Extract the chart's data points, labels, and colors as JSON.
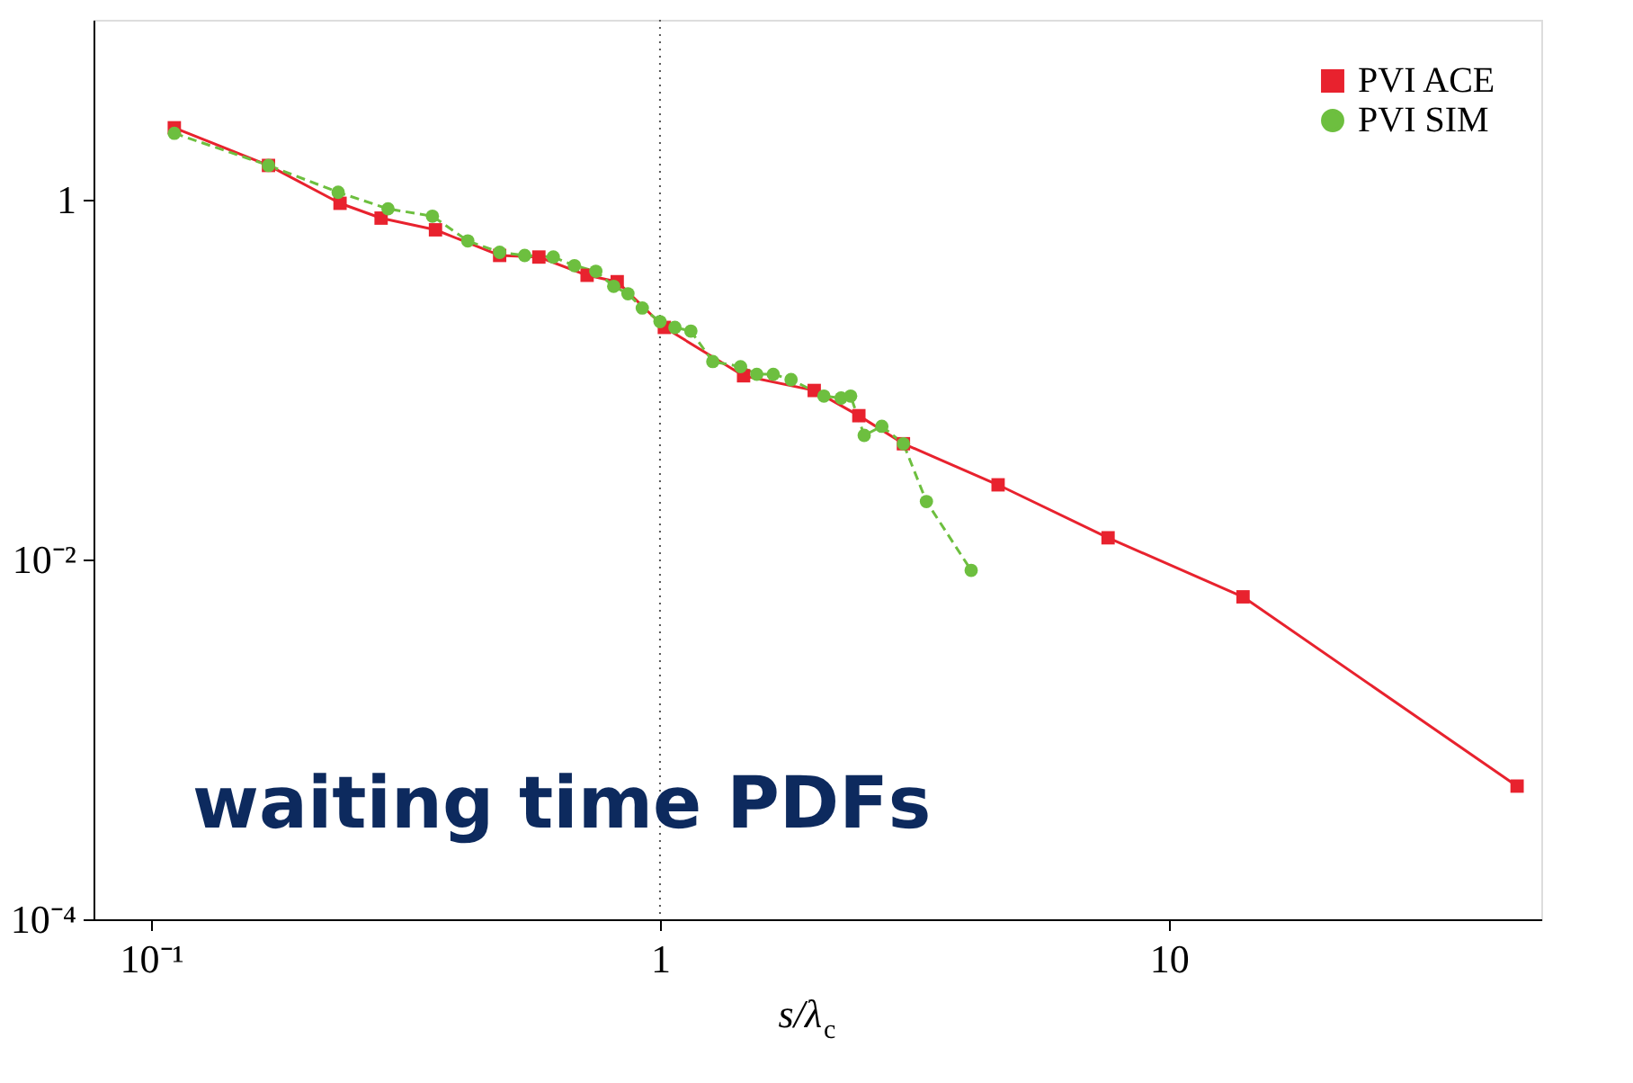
{
  "chart_data": {
    "type": "line",
    "xlabel": "s/λ$_{c}$",
    "log": "xy",
    "xlim": [
      0.077,
      54
    ],
    "ylim": [
      0.0001,
      10
    ],
    "xticks": [
      {
        "value": 0.1,
        "label": "10⁻¹"
      },
      1,
      10
    ],
    "yticks": [
      {
        "value": 0.0001,
        "label": "10⁻⁴"
      },
      {
        "value": 0.01,
        "label": "10⁻²"
      },
      1
    ],
    "grid": false,
    "legend": "top right",
    "ref_lines": [
      {
        "axis": "x",
        "value": 1,
        "color": "#555555",
        "line_style": "dotted"
      }
    ],
    "annotations": [
      "waiting time PDFs"
    ],
    "series": [
      {
        "name": "PVI ACE",
        "color": "#e8222e",
        "marker": "square",
        "line_style": "solid",
        "x": [
          0.111,
          0.17,
          0.235,
          0.283,
          0.362,
          0.484,
          0.578,
          0.719,
          0.824,
          1.02,
          1.46,
          2.01,
          2.46,
          3.01,
          4.62,
          7.6,
          14.0,
          48.4
        ],
        "values": [
          2.51,
          1.55,
          0.955,
          0.79,
          0.68,
          0.49,
          0.48,
          0.38,
          0.35,
          0.195,
          0.105,
          0.087,
          0.063,
          0.044,
          0.026,
          0.0132,
          0.0062,
          0.00055
        ]
      },
      {
        "name": "PVI SIM",
        "color": "#6dbf3f",
        "marker": "circle",
        "line_style": "dashed",
        "x": [
          0.111,
          0.17,
          0.233,
          0.292,
          0.357,
          0.419,
          0.484,
          0.542,
          0.617,
          0.679,
          0.748,
          0.811,
          0.865,
          0.923,
          1.0,
          1.07,
          1.15,
          1.27,
          1.44,
          1.55,
          1.67,
          1.81,
          2.1,
          2.27,
          2.37,
          2.52,
          2.73,
          3.01,
          3.34,
          4.09
        ],
        "values": [
          2.34,
          1.55,
          1.1,
          0.89,
          0.81,
          0.59,
          0.51,
          0.49,
          0.48,
          0.43,
          0.4,
          0.33,
          0.3,
          0.25,
          0.21,
          0.195,
          0.186,
          0.126,
          0.118,
          0.107,
          0.107,
          0.1,
          0.081,
          0.079,
          0.081,
          0.049,
          0.055,
          0.044,
          0.021,
          0.0087
        ]
      }
    ]
  }
}
